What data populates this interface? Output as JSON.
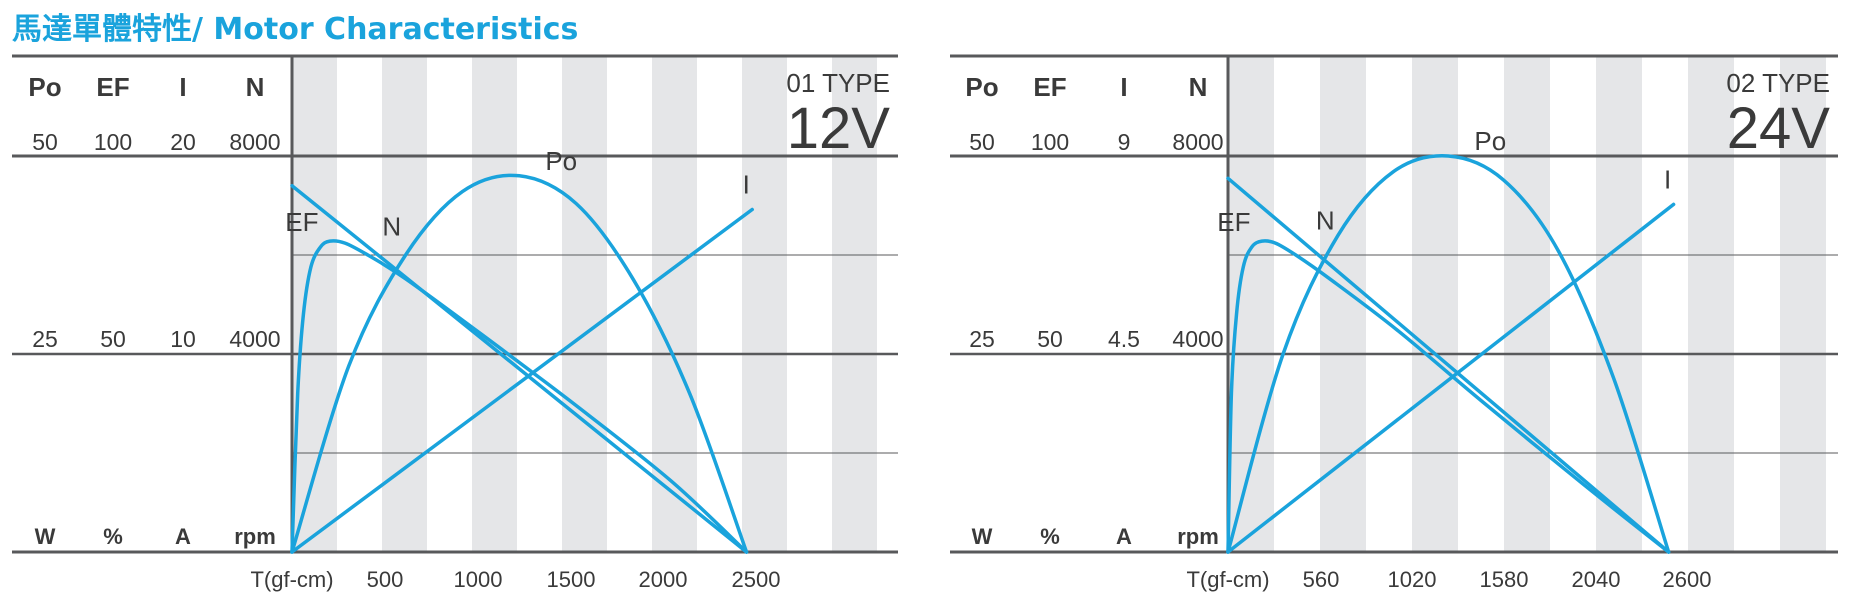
{
  "page": {
    "title": "馬達單體特性/ Motor Characteristics"
  },
  "colors": {
    "curve": "#1aa3dc",
    "stripe": "#e5e6e8",
    "axis": "#58595b",
    "text": "#3a3a3a",
    "title": "#1aa3dc"
  },
  "chart_data": [
    {
      "type": "line",
      "type_label": "01 TYPE",
      "voltage": "12V",
      "xlabel": "T(gf-cm)",
      "x_ticks": [
        "500",
        "1000",
        "1500",
        "2000",
        "2500"
      ],
      "x_tick_values": [
        500,
        1000,
        1500,
        2000,
        2500
      ],
      "xlim": [
        0,
        3200
      ],
      "axes": [
        {
          "name": "Po",
          "unit": "W",
          "max": "50",
          "mid": "25"
        },
        {
          "name": "EF",
          "unit": "%",
          "max": "100",
          "mid": "50"
        },
        {
          "name": "I",
          "unit": "A",
          "max": "20",
          "mid": "10"
        },
        {
          "name": "N",
          "unit": "rpm",
          "max": "8000",
          "mid": "4000"
        }
      ],
      "series": [
        {
          "name": "N",
          "x": [
            0,
            2400
          ],
          "y": [
            7400,
            0
          ]
        },
        {
          "name": "I",
          "x": [
            0,
            2430
          ],
          "y": [
            0,
            17.3
          ]
        },
        {
          "name": "Po",
          "x": [
            0,
            300,
            600,
            900,
            1200,
            1500,
            1800,
            2100,
            2400
          ],
          "y": [
            0,
            23.5,
            37.5,
            45.5,
            47.5,
            44,
            34.5,
            20,
            0
          ]
        },
        {
          "name": "EF",
          "x": [
            0,
            30,
            60,
            100,
            150,
            200,
            280,
            400,
            600,
            1000,
            1500,
            2000,
            2400
          ],
          "y": [
            0,
            40,
            60,
            72,
            77,
            78.5,
            78,
            75,
            69,
            55,
            37,
            18,
            0
          ]
        }
      ],
      "grid": true
    },
    {
      "type": "line",
      "type_label": "02 TYPE",
      "voltage": "24V",
      "xlabel": "T(gf-cm)",
      "x_ticks": [
        "560",
        "1020",
        "1580",
        "2040",
        "2600"
      ],
      "x_tick_values": [
        560,
        1020,
        1580,
        2040,
        2600
      ],
      "xlim": [
        0,
        3600
      ],
      "axes": [
        {
          "name": "Po",
          "unit": "W",
          "max": "50",
          "mid": "25"
        },
        {
          "name": "EF",
          "unit": "%",
          "max": "100",
          "mid": "50"
        },
        {
          "name": "I",
          "unit": "A",
          "max": "9",
          "mid": "4.5"
        },
        {
          "name": "N",
          "unit": "rpm",
          "max": "8000",
          "mid": "4000"
        }
      ],
      "series": [
        {
          "name": "N",
          "x": [
            0,
            2600
          ],
          "y": [
            7550,
            0
          ]
        },
        {
          "name": "I",
          "x": [
            0,
            2630
          ],
          "y": [
            0,
            7.9
          ]
        },
        {
          "name": "Po",
          "x": [
            0,
            325,
            650,
            975,
            1300,
            1625,
            1950,
            2275,
            2600
          ],
          "y": [
            0,
            25,
            40,
            48,
            50,
            47,
            38,
            22,
            0
          ]
        },
        {
          "name": "EF",
          "x": [
            0,
            20,
            50,
            90,
            140,
            200,
            280,
            400,
            600,
            1000,
            1500,
            2100,
            2600
          ],
          "y": [
            0,
            40,
            60,
            72,
            77,
            78.5,
            78,
            75,
            69,
            56,
            38,
            17,
            0
          ]
        }
      ],
      "grid": true
    }
  ]
}
